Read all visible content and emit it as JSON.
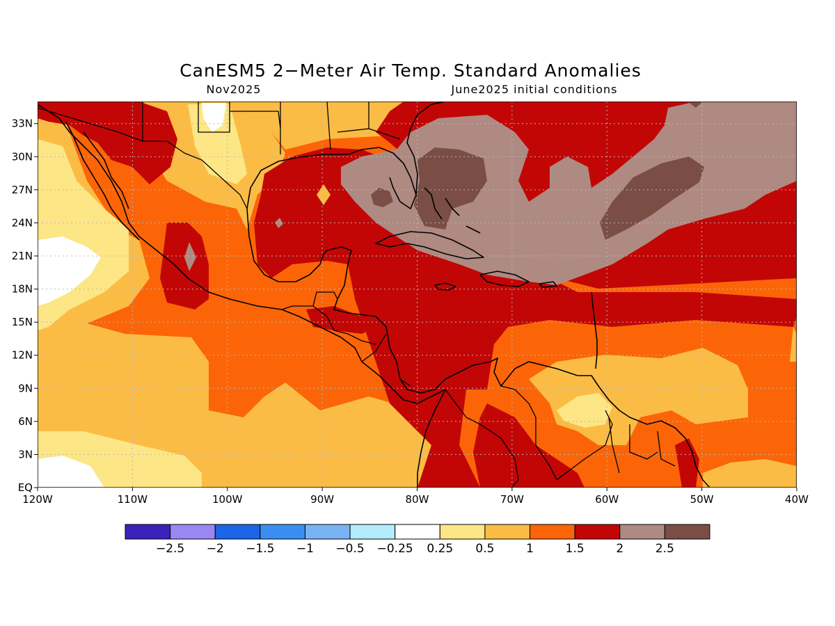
{
  "title": "CanESM5 2−Meter Air Temp. Standard Anomalies",
  "subtitle_left": "Nov2025",
  "subtitle_right": "June2025 initial conditions",
  "map": {
    "lon_range": [
      -120,
      -40
    ],
    "lat_range": [
      0,
      35
    ],
    "lon_ticks": [
      {
        "value": -120,
        "label": "120W"
      },
      {
        "value": -110,
        "label": "110W"
      },
      {
        "value": -100,
        "label": "100W"
      },
      {
        "value": -90,
        "label": "90W"
      },
      {
        "value": -80,
        "label": "80W"
      },
      {
        "value": -70,
        "label": "70W"
      },
      {
        "value": -60,
        "label": "60W"
      },
      {
        "value": -50,
        "label": "50W"
      },
      {
        "value": -40,
        "label": "40W"
      }
    ],
    "lat_ticks": [
      {
        "value": 0,
        "label": "EQ"
      },
      {
        "value": 3,
        "label": "3N"
      },
      {
        "value": 6,
        "label": "6N"
      },
      {
        "value": 9,
        "label": "9N"
      },
      {
        "value": 12,
        "label": "12N"
      },
      {
        "value": 15,
        "label": "15N"
      },
      {
        "value": 18,
        "label": "18N"
      },
      {
        "value": 21,
        "label": "21N"
      },
      {
        "value": 24,
        "label": "24N"
      },
      {
        "value": 27,
        "label": "27N"
      },
      {
        "value": 30,
        "label": "30N"
      },
      {
        "value": 33,
        "label": "33N"
      }
    ],
    "grid": true
  },
  "colorbar": {
    "colors": [
      "#3b22bb",
      "#9b87f4",
      "#1c64e8",
      "#3a8ef0",
      "#78b4f4",
      "#b4ecfc",
      "#ffffff",
      "#fde685",
      "#fbbc45",
      "#fb6508",
      "#c20606",
      "#ae8a82",
      "#7a4e45"
    ],
    "labels": [
      "−2.5",
      "−2",
      "−1.5",
      "−1",
      "−0.5",
      "−0.25",
      "0.25",
      "0.5",
      "1",
      "1.5",
      "2",
      "2.5"
    ]
  }
}
